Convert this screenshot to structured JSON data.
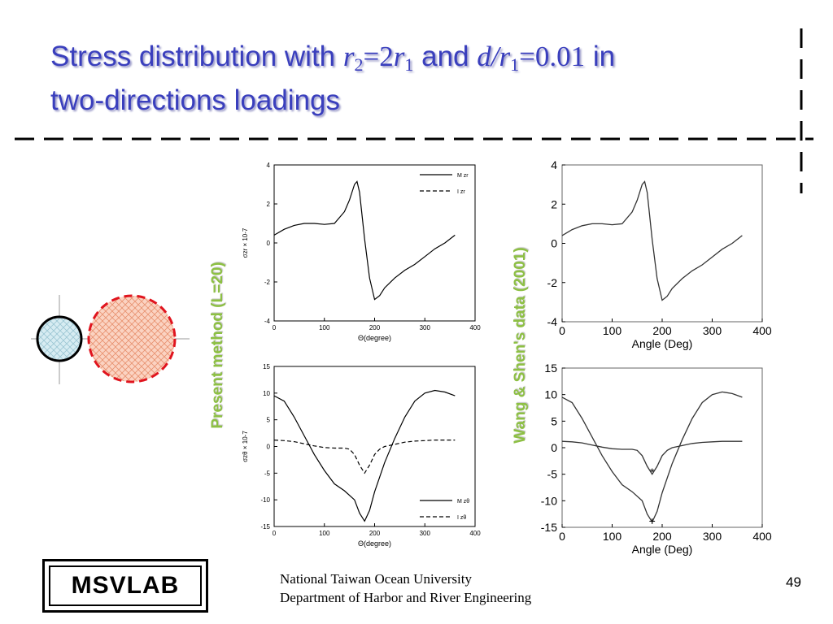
{
  "slide": {
    "title": {
      "part1": "Stress distribution   with ",
      "r2": "r",
      "r2_sub": "2",
      "eq1": "=2",
      "r1": "r",
      "r1_sub": "1",
      "and": " and ",
      "d_over_r": "d/r",
      "d_sub": "1",
      "eq2": "=0.01",
      "part2": " in",
      "line2": "two-directions loadings"
    },
    "left_label": "Present method (L=20)",
    "right_label": "Wang & Shen's data (2001)",
    "footer_line1": "National Taiwan Ocean University",
    "footer_line2": "Department of Harbor and River Engineering",
    "page_number": "49",
    "logo_text": "MSVLAB",
    "colors": {
      "title": "#3a3fbd",
      "label_green": "#8dc043",
      "circle_fill_small": "#cfe8ef",
      "circle_fill_large": "#f6b9a0",
      "dash_red": "#e0141e"
    }
  },
  "chart_data": [
    {
      "type": "line",
      "panel": "top-left",
      "xlabel": "Θ(degree)",
      "ylabel": "σzr × 10-7",
      "xlim": [
        0,
        400
      ],
      "ylim": [
        -4,
        4
      ],
      "xticks": [
        "0",
        "100",
        "200",
        "300",
        "400"
      ],
      "yticks": [
        "4",
        "2",
        "0",
        "-2",
        "-4"
      ],
      "legend": [
        "M zr",
        "I zr"
      ],
      "series": [
        {
          "name": "M zr",
          "style": "solid",
          "x": [
            0,
            20,
            40,
            60,
            80,
            100,
            120,
            140,
            150,
            160,
            165,
            170,
            180,
            190,
            200,
            210,
            220,
            240,
            260,
            280,
            300,
            320,
            340,
            360
          ],
          "y": [
            0.4,
            0.7,
            0.9,
            1.0,
            1.0,
            0.95,
            1.0,
            1.6,
            2.2,
            3.0,
            3.15,
            2.6,
            0.2,
            -1.8,
            -2.9,
            -2.7,
            -2.3,
            -1.8,
            -1.4,
            -1.1,
            -0.7,
            -0.3,
            0.0,
            0.4
          ]
        }
      ]
    },
    {
      "type": "line",
      "panel": "bottom-left",
      "xlabel": "Θ(degree)",
      "ylabel": "σzθ × 10-7",
      "xlim": [
        0,
        400
      ],
      "ylim": [
        -15,
        15
      ],
      "xticks": [
        "0",
        "100",
        "200",
        "300",
        "400"
      ],
      "yticks": [
        "15",
        "10",
        "5",
        "0",
        "-5",
        "-10",
        "-15"
      ],
      "legend": [
        "M zθ",
        "I zθ"
      ],
      "series": [
        {
          "name": "M zθ",
          "style": "solid",
          "x": [
            0,
            20,
            40,
            60,
            80,
            100,
            120,
            140,
            160,
            170,
            180,
            190,
            200,
            220,
            240,
            260,
            280,
            300,
            320,
            340,
            360
          ],
          "y": [
            9.5,
            8.5,
            5.5,
            2.0,
            -1.5,
            -4.5,
            -7.0,
            -8.3,
            -10.0,
            -12.5,
            -14.0,
            -12.0,
            -8.5,
            -3.0,
            1.5,
            5.5,
            8.5,
            10.0,
            10.5,
            10.2,
            9.5
          ]
        },
        {
          "name": "I zθ",
          "style": "dashed",
          "x": [
            0,
            20,
            40,
            60,
            80,
            100,
            120,
            140,
            150,
            160,
            170,
            180,
            190,
            200,
            210,
            220,
            240,
            260,
            280,
            300,
            320,
            340,
            360
          ],
          "y": [
            1.2,
            1.1,
            0.9,
            0.5,
            0.1,
            -0.2,
            -0.3,
            -0.3,
            -0.5,
            -1.5,
            -3.5,
            -5.0,
            -3.5,
            -1.5,
            -0.5,
            0.0,
            0.4,
            0.8,
            1.0,
            1.1,
            1.2,
            1.2,
            1.2
          ]
        }
      ]
    },
    {
      "type": "line",
      "panel": "top-right",
      "xlabel": "Angle (Deg)",
      "ylabel": "",
      "xlim": [
        0,
        400
      ],
      "ylim": [
        -4,
        4
      ],
      "xticks": [
        "0",
        "100",
        "200",
        "300",
        "400"
      ],
      "yticks": [
        "4",
        "2",
        "0",
        "-2",
        "-4"
      ],
      "series": [
        {
          "style": "solid",
          "x": [
            0,
            20,
            40,
            60,
            80,
            100,
            120,
            140,
            150,
            160,
            165,
            170,
            180,
            190,
            200,
            210,
            220,
            240,
            260,
            280,
            300,
            320,
            340,
            360
          ],
          "y": [
            0.4,
            0.7,
            0.9,
            1.0,
            1.0,
            0.95,
            1.0,
            1.6,
            2.2,
            3.0,
            3.15,
            2.6,
            0.2,
            -1.8,
            -2.9,
            -2.7,
            -2.3,
            -1.8,
            -1.4,
            -1.1,
            -0.7,
            -0.3,
            0.0,
            0.4
          ]
        }
      ]
    },
    {
      "type": "line",
      "panel": "bottom-right",
      "xlabel": "Angle (Deg)",
      "ylabel": "",
      "xlim": [
        0,
        400
      ],
      "ylim": [
        -15,
        15
      ],
      "xticks": [
        "0",
        "100",
        "200",
        "300",
        "400"
      ],
      "yticks": [
        "15",
        "10",
        "5",
        "0",
        "-5",
        "-10",
        "-15"
      ],
      "markers": [
        {
          "x": 180,
          "y": -4.6,
          "symbol": "*"
        },
        {
          "x": 180,
          "y": -13.8,
          "symbol": "+"
        }
      ],
      "series": [
        {
          "style": "solid",
          "x": [
            0,
            20,
            40,
            60,
            80,
            100,
            120,
            140,
            160,
            170,
            180,
            190,
            200,
            220,
            240,
            260,
            280,
            300,
            320,
            340,
            360
          ],
          "y": [
            9.5,
            8.5,
            5.5,
            2.0,
            -1.5,
            -4.5,
            -7.0,
            -8.3,
            -10.0,
            -12.5,
            -14.0,
            -12.0,
            -8.5,
            -3.0,
            1.5,
            5.5,
            8.5,
            10.0,
            10.5,
            10.2,
            9.5
          ]
        },
        {
          "style": "solid",
          "x": [
            0,
            20,
            40,
            60,
            80,
            100,
            120,
            140,
            150,
            160,
            170,
            180,
            190,
            200,
            210,
            220,
            240,
            260,
            280,
            300,
            320,
            340,
            360
          ],
          "y": [
            1.2,
            1.1,
            0.9,
            0.5,
            0.1,
            -0.2,
            -0.3,
            -0.3,
            -0.5,
            -1.5,
            -3.5,
            -5.0,
            -3.5,
            -1.5,
            -0.5,
            0.0,
            0.4,
            0.8,
            1.0,
            1.1,
            1.2,
            1.2,
            1.2
          ]
        }
      ]
    }
  ]
}
